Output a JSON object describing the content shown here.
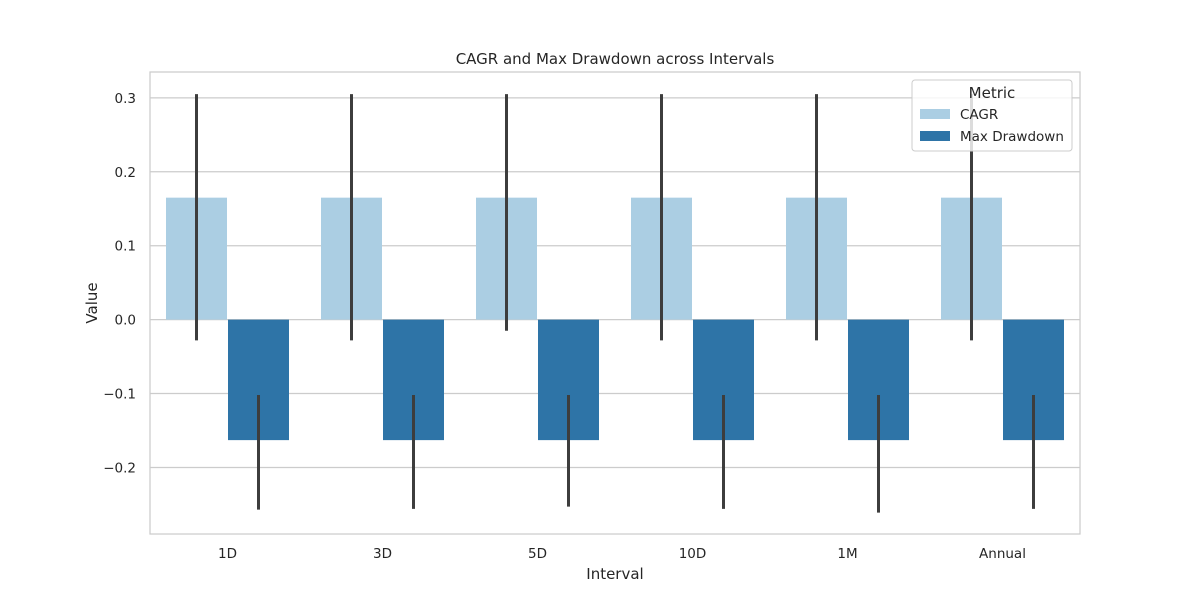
{
  "chart_data": {
    "type": "bar",
    "title": "CAGR and Max Drawdown across Intervals",
    "xlabel": "Interval",
    "ylabel": "Value",
    "categories": [
      "1D",
      "3D",
      "5D",
      "10D",
      "1M",
      "Annual"
    ],
    "ylim": [
      -0.29,
      0.335
    ],
    "yticks": [
      -0.2,
      -0.1,
      0.0,
      0.1,
      0.2,
      0.3
    ],
    "ytick_labels": [
      "−0.2",
      "−0.1",
      "0.0",
      "0.1",
      "0.2",
      "0.3"
    ],
    "grid": true,
    "legend": {
      "title": "Metric",
      "placement": "top-right"
    },
    "series": [
      {
        "name": "CAGR",
        "color": "#abcee3",
        "values": [
          0.165,
          0.165,
          0.165,
          0.165,
          0.165,
          0.165
        ],
        "error_low": [
          -0.028,
          -0.028,
          -0.015,
          -0.028,
          -0.028,
          -0.028
        ],
        "error_high": [
          0.305,
          0.305,
          0.305,
          0.305,
          0.305,
          0.305
        ]
      },
      {
        "name": "Max Drawdown",
        "color": "#2e74a7",
        "values": [
          -0.163,
          -0.163,
          -0.163,
          -0.163,
          -0.163,
          -0.163
        ],
        "error_low": [
          -0.257,
          -0.256,
          -0.253,
          -0.256,
          -0.261,
          -0.256
        ],
        "error_high": [
          -0.102,
          -0.102,
          -0.102,
          -0.102,
          -0.102,
          -0.102
        ]
      }
    ]
  }
}
